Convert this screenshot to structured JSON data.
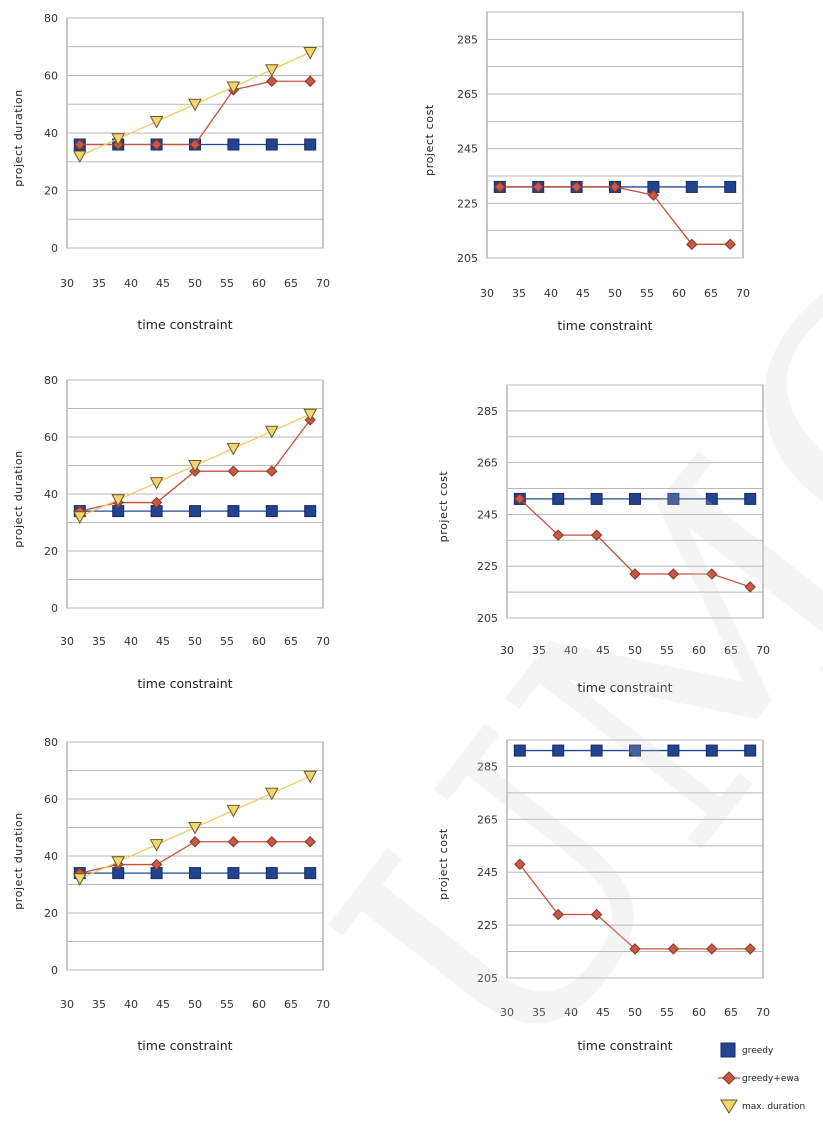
{
  "legend": [
    {
      "name": "greedy",
      "color": "#1f3d8a",
      "marker": "square"
    },
    {
      "name": "greedy+ewa",
      "color": "#b84a3a",
      "marker": "diamond"
    },
    {
      "name": "max. duration",
      "color": "#e6c84a",
      "marker": "triangle-down"
    }
  ],
  "watermark": "UMCS",
  "chart_data": [
    {
      "type": "line",
      "xlabel": "time constraint",
      "ylabel": "project duration",
      "xticks": [
        30,
        35,
        40,
        45,
        50,
        55,
        60,
        65,
        70
      ],
      "yticks": [
        0,
        20,
        40,
        60,
        80
      ],
      "ylim": [
        0,
        80
      ],
      "grid": true,
      "x": [
        32,
        38,
        44,
        50,
        56,
        62,
        68
      ],
      "series": [
        {
          "name": "greedy",
          "values": [
            36,
            36,
            36,
            36,
            36,
            36,
            36
          ]
        },
        {
          "name": "greedy+ewa",
          "values": [
            36,
            36,
            36,
            36,
            55,
            58,
            58
          ]
        },
        {
          "name": "max. duration",
          "values": [
            32,
            38,
            44,
            50,
            56,
            62,
            68
          ]
        }
      ]
    },
    {
      "type": "line",
      "xlabel": "time constraint",
      "ylabel": "project cost",
      "xticks": [
        30,
        35,
        40,
        45,
        50,
        55,
        60,
        65,
        70
      ],
      "yticks": [
        205,
        225,
        245,
        265,
        285
      ],
      "ylim": [
        205,
        295
      ],
      "grid": true,
      "x": [
        32,
        38,
        44,
        50,
        56,
        62,
        68
      ],
      "series": [
        {
          "name": "greedy",
          "values": [
            231,
            231,
            231,
            231,
            231,
            231,
            231
          ]
        },
        {
          "name": "greedy+ewa",
          "values": [
            231,
            231,
            231,
            231,
            228,
            210,
            210
          ]
        }
      ]
    },
    {
      "type": "line",
      "xlabel": "time constraint",
      "ylabel": "project duration",
      "xticks": [
        30,
        35,
        40,
        45,
        50,
        55,
        60,
        65,
        70
      ],
      "yticks": [
        0,
        20,
        40,
        60,
        80
      ],
      "ylim": [
        0,
        80
      ],
      "grid": true,
      "x": [
        32,
        38,
        44,
        50,
        56,
        62,
        68
      ],
      "series": [
        {
          "name": "greedy",
          "values": [
            34,
            34,
            34,
            34,
            34,
            34,
            34
          ]
        },
        {
          "name": "greedy+ewa",
          "values": [
            34,
            37,
            37,
            48,
            48,
            48,
            66
          ]
        },
        {
          "name": "max. duration",
          "values": [
            32,
            38,
            44,
            50,
            56,
            62,
            68
          ]
        }
      ]
    },
    {
      "type": "line",
      "xlabel": "time constraint",
      "ylabel": "project cost",
      "xticks": [
        30,
        35,
        40,
        45,
        50,
        55,
        60,
        65,
        70
      ],
      "yticks": [
        205,
        225,
        245,
        265,
        285
      ],
      "ylim": [
        205,
        295
      ],
      "grid": true,
      "x": [
        32,
        38,
        44,
        50,
        56,
        62,
        68
      ],
      "series": [
        {
          "name": "greedy",
          "values": [
            251,
            251,
            251,
            251,
            251,
            251,
            251
          ]
        },
        {
          "name": "greedy+ewa",
          "values": [
            251,
            237,
            237,
            222,
            222,
            222,
            217
          ]
        }
      ]
    },
    {
      "type": "line",
      "xlabel": "time constraint",
      "ylabel": "project duration",
      "xticks": [
        30,
        35,
        40,
        45,
        50,
        55,
        60,
        65,
        70
      ],
      "yticks": [
        0,
        20,
        40,
        60,
        80
      ],
      "ylim": [
        0,
        80
      ],
      "grid": true,
      "x": [
        32,
        38,
        44,
        50,
        56,
        62,
        68
      ],
      "series": [
        {
          "name": "greedy",
          "values": [
            34,
            34,
            34,
            34,
            34,
            34,
            34
          ]
        },
        {
          "name": "greedy+ewa",
          "values": [
            34,
            37,
            37,
            45,
            45,
            45,
            45
          ]
        },
        {
          "name": "max. duration",
          "values": [
            32,
            38,
            44,
            50,
            56,
            62,
            68
          ]
        }
      ]
    },
    {
      "type": "line",
      "xlabel": "time constraint",
      "ylabel": "project cost",
      "xticks": [
        30,
        35,
        40,
        45,
        50,
        55,
        60,
        65,
        70
      ],
      "yticks": [
        205,
        225,
        245,
        265,
        285
      ],
      "ylim": [
        205,
        295
      ],
      "grid": true,
      "x": [
        32,
        38,
        44,
        50,
        56,
        62,
        68
      ],
      "series": [
        {
          "name": "greedy",
          "values": [
            291,
            291,
            291,
            291,
            291,
            291,
            291
          ]
        },
        {
          "name": "greedy+ewa",
          "values": [
            248,
            229,
            229,
            216,
            216,
            216,
            216
          ]
        }
      ]
    }
  ]
}
